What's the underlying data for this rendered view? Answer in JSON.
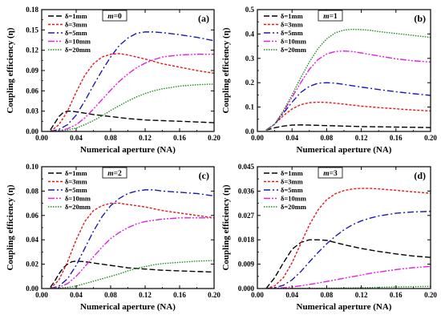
{
  "x_label": "Numerical aperture (NA)",
  "y_label": "Coupling efficiency (η)",
  "styles": [
    {
      "color": "#000000",
      "dash": "7,3"
    },
    {
      "color": "#e8141a",
      "dash": "3,2"
    },
    {
      "color": "#1a1ab4",
      "dash": "8,3,2,3"
    },
    {
      "color": "#e020e0",
      "dash": "8,2,2,2,2,2"
    },
    {
      "color": "#1a8c1a",
      "dash": "1.5,1.5"
    }
  ],
  "chart_data": [
    {
      "type": "line",
      "panel": "(a)",
      "annotation": "m=0",
      "annotation_parts": {
        "var": "m",
        "rest": "=0"
      },
      "xlim": [
        0,
        0.2
      ],
      "ylim": [
        0,
        0.18
      ],
      "xticks": [
        "0.00",
        "0.04",
        "0.08",
        "0.12",
        "0.16",
        "0.20"
      ],
      "yticks": [
        "0.00",
        "0.03",
        "0.06",
        "0.09",
        "0.12",
        "0.15",
        "0.18"
      ],
      "series": [
        {
          "name": "δ=1mm",
          "x": [
            0.01,
            0.015,
            0.02,
            0.025,
            0.03,
            0.035,
            0.04,
            0.05,
            0.06,
            0.08,
            0.1,
            0.12,
            0.14,
            0.16,
            0.18,
            0.2
          ],
          "y": [
            0.002,
            0.012,
            0.022,
            0.028,
            0.03,
            0.03,
            0.029,
            0.027,
            0.025,
            0.022,
            0.019,
            0.017,
            0.016,
            0.015,
            0.014,
            0.013
          ]
        },
        {
          "name": "δ=3mm",
          "x": [
            0.01,
            0.02,
            0.03,
            0.04,
            0.05,
            0.06,
            0.07,
            0.08,
            0.09,
            0.1,
            0.12,
            0.14,
            0.16,
            0.18,
            0.2
          ],
          "y": [
            0,
            0.01,
            0.03,
            0.058,
            0.083,
            0.1,
            0.11,
            0.114,
            0.115,
            0.113,
            0.107,
            0.1,
            0.095,
            0.09,
            0.086
          ]
        },
        {
          "name": "δ=5mm",
          "x": [
            0.01,
            0.02,
            0.03,
            0.04,
            0.05,
            0.06,
            0.07,
            0.08,
            0.09,
            0.1,
            0.11,
            0.12,
            0.13,
            0.14,
            0.16,
            0.18,
            0.2
          ],
          "y": [
            0,
            0.003,
            0.01,
            0.024,
            0.045,
            0.068,
            0.09,
            0.11,
            0.127,
            0.138,
            0.145,
            0.147,
            0.147,
            0.146,
            0.143,
            0.139,
            0.134
          ]
        },
        {
          "name": "δ=10mm",
          "x": [
            0.01,
            0.02,
            0.03,
            0.04,
            0.05,
            0.06,
            0.07,
            0.08,
            0.09,
            0.1,
            0.11,
            0.12,
            0.13,
            0.14,
            0.16,
            0.18,
            0.2
          ],
          "y": [
            0,
            0.001,
            0.004,
            0.01,
            0.02,
            0.033,
            0.047,
            0.061,
            0.074,
            0.085,
            0.094,
            0.101,
            0.106,
            0.11,
            0.113,
            0.114,
            0.114
          ]
        },
        {
          "name": "δ=20mm",
          "x": [
            0.01,
            0.02,
            0.03,
            0.04,
            0.05,
            0.06,
            0.07,
            0.08,
            0.09,
            0.1,
            0.11,
            0.12,
            0.13,
            0.14,
            0.16,
            0.18,
            0.2
          ],
          "y": [
            0,
            0.0005,
            0.002,
            0.005,
            0.01,
            0.016,
            0.023,
            0.031,
            0.038,
            0.045,
            0.051,
            0.056,
            0.06,
            0.063,
            0.067,
            0.069,
            0.07
          ]
        }
      ]
    },
    {
      "type": "line",
      "panel": "(b)",
      "annotation": "m=1",
      "annotation_parts": {
        "var": "m",
        "rest": "=1"
      },
      "xlim": [
        0,
        0.2
      ],
      "ylim": [
        0,
        0.5
      ],
      "xticks": [
        "0.00",
        "0.04",
        "0.08",
        "0.12",
        "0.16",
        "0.20"
      ],
      "yticks": [
        "0.0",
        "0.1",
        "0.2",
        "0.3",
        "0.4",
        "0.5"
      ],
      "series": [
        {
          "name": "δ=1mm",
          "x": [
            0.01,
            0.02,
            0.03,
            0.04,
            0.05,
            0.06,
            0.08,
            0.1,
            0.12,
            0.14,
            0.16,
            0.18,
            0.2
          ],
          "y": [
            0.005,
            0.015,
            0.022,
            0.026,
            0.027,
            0.026,
            0.024,
            0.022,
            0.02,
            0.019,
            0.018,
            0.017,
            0.016
          ]
        },
        {
          "name": "δ=3mm",
          "x": [
            0.01,
            0.02,
            0.03,
            0.04,
            0.05,
            0.06,
            0.07,
            0.08,
            0.09,
            0.1,
            0.12,
            0.14,
            0.16,
            0.18,
            0.2
          ],
          "y": [
            0.005,
            0.03,
            0.065,
            0.092,
            0.11,
            0.118,
            0.12,
            0.119,
            0.116,
            0.112,
            0.104,
            0.098,
            0.093,
            0.088,
            0.084
          ]
        },
        {
          "name": "δ=5mm",
          "x": [
            0.01,
            0.02,
            0.03,
            0.04,
            0.05,
            0.06,
            0.07,
            0.08,
            0.09,
            0.1,
            0.12,
            0.14,
            0.16,
            0.18,
            0.2
          ],
          "y": [
            0.005,
            0.03,
            0.075,
            0.12,
            0.16,
            0.185,
            0.198,
            0.2,
            0.198,
            0.193,
            0.182,
            0.172,
            0.163,
            0.155,
            0.148
          ]
        },
        {
          "name": "δ=10mm",
          "x": [
            0.01,
            0.02,
            0.03,
            0.04,
            0.05,
            0.06,
            0.07,
            0.08,
            0.09,
            0.1,
            0.11,
            0.12,
            0.14,
            0.16,
            0.18,
            0.2
          ],
          "y": [
            0.005,
            0.03,
            0.08,
            0.14,
            0.2,
            0.255,
            0.295,
            0.318,
            0.328,
            0.33,
            0.328,
            0.322,
            0.31,
            0.298,
            0.29,
            0.285
          ]
        },
        {
          "name": "δ=20mm",
          "x": [
            0.01,
            0.02,
            0.03,
            0.04,
            0.05,
            0.06,
            0.07,
            0.08,
            0.09,
            0.1,
            0.11,
            0.12,
            0.13,
            0.14,
            0.16,
            0.18,
            0.2
          ],
          "y": [
            0.005,
            0.03,
            0.085,
            0.15,
            0.22,
            0.285,
            0.34,
            0.38,
            0.405,
            0.416,
            0.419,
            0.418,
            0.415,
            0.41,
            0.402,
            0.394,
            0.386
          ]
        }
      ]
    },
    {
      "type": "line",
      "panel": "(c)",
      "annotation": "m=2",
      "annotation_parts": {
        "var": "m",
        "rest": "=2"
      },
      "xlim": [
        0,
        0.2
      ],
      "ylim": [
        0,
        0.1
      ],
      "xticks": [
        "0.00",
        "0.04",
        "0.08",
        "0.12",
        "0.16",
        "0.20"
      ],
      "yticks": [
        "0.00",
        "0.02",
        "0.04",
        "0.06",
        "0.08",
        "0.10"
      ],
      "series": [
        {
          "name": "δ=1mm",
          "x": [
            0.01,
            0.015,
            0.02,
            0.025,
            0.03,
            0.035,
            0.04,
            0.05,
            0.06,
            0.08,
            0.1,
            0.12,
            0.14,
            0.16,
            0.18,
            0.2
          ],
          "y": [
            0.001,
            0.006,
            0.012,
            0.017,
            0.02,
            0.022,
            0.0225,
            0.022,
            0.021,
            0.019,
            0.017,
            0.016,
            0.015,
            0.0145,
            0.014,
            0.0135
          ]
        },
        {
          "name": "δ=3mm",
          "x": [
            0.01,
            0.02,
            0.03,
            0.04,
            0.05,
            0.06,
            0.07,
            0.08,
            0.09,
            0.1,
            0.12,
            0.14,
            0.16,
            0.18,
            0.2
          ],
          "y": [
            0,
            0.007,
            0.022,
            0.04,
            0.055,
            0.064,
            0.068,
            0.07,
            0.07,
            0.069,
            0.067,
            0.064,
            0.062,
            0.06,
            0.058
          ]
        },
        {
          "name": "δ=5mm",
          "x": [
            0.01,
            0.02,
            0.03,
            0.04,
            0.05,
            0.06,
            0.07,
            0.08,
            0.09,
            0.1,
            0.11,
            0.12,
            0.13,
            0.14,
            0.16,
            0.18,
            0.2
          ],
          "y": [
            0,
            0.002,
            0.008,
            0.019,
            0.033,
            0.047,
            0.059,
            0.068,
            0.074,
            0.078,
            0.08,
            0.081,
            0.081,
            0.08,
            0.079,
            0.078,
            0.076
          ]
        },
        {
          "name": "δ=10mm",
          "x": [
            0.01,
            0.02,
            0.03,
            0.04,
            0.05,
            0.06,
            0.07,
            0.08,
            0.09,
            0.1,
            0.11,
            0.12,
            0.13,
            0.14,
            0.16,
            0.18,
            0.2
          ],
          "y": [
            0,
            0.001,
            0.004,
            0.01,
            0.018,
            0.026,
            0.034,
            0.041,
            0.046,
            0.05,
            0.053,
            0.055,
            0.056,
            0.057,
            0.058,
            0.058,
            0.058
          ]
        },
        {
          "name": "δ=20mm",
          "x": [
            0.01,
            0.02,
            0.03,
            0.04,
            0.05,
            0.06,
            0.07,
            0.08,
            0.09,
            0.1,
            0.11,
            0.12,
            0.13,
            0.14,
            0.16,
            0.18,
            0.2
          ],
          "y": [
            0,
            0.0003,
            0.001,
            0.002,
            0.004,
            0.006,
            0.008,
            0.01,
            0.012,
            0.0145,
            0.0165,
            0.018,
            0.0195,
            0.0205,
            0.0215,
            0.0225,
            0.023
          ]
        }
      ]
    },
    {
      "type": "line",
      "panel": "(d)",
      "annotation": "m=3",
      "annotation_parts": {
        "var": "m",
        "rest": "=3"
      },
      "xlim": [
        0,
        0.2
      ],
      "ylim": [
        0,
        0.045
      ],
      "xticks": [
        "0.00",
        "0.04",
        "0.08",
        "0.12",
        "0.16",
        "0.20"
      ],
      "yticks": [
        "0.000",
        "0.009",
        "0.018",
        "0.027",
        "0.036",
        "0.045"
      ],
      "series": [
        {
          "name": "δ=1mm",
          "x": [
            0.01,
            0.02,
            0.03,
            0.04,
            0.05,
            0.06,
            0.07,
            0.08,
            0.09,
            0.1,
            0.12,
            0.14,
            0.16,
            0.18,
            0.2
          ],
          "y": [
            0,
            0.004,
            0.0095,
            0.0145,
            0.017,
            0.018,
            0.018,
            0.0178,
            0.017,
            0.0162,
            0.0148,
            0.0137,
            0.0128,
            0.012,
            0.0115
          ]
        },
        {
          "name": "δ=3mm",
          "x": [
            0.01,
            0.02,
            0.03,
            0.04,
            0.05,
            0.06,
            0.07,
            0.08,
            0.09,
            0.1,
            0.11,
            0.12,
            0.13,
            0.14,
            0.16,
            0.18,
            0.2
          ],
          "y": [
            0,
            0.001,
            0.004,
            0.0095,
            0.0165,
            0.0235,
            0.029,
            0.0328,
            0.035,
            0.0362,
            0.0368,
            0.037,
            0.037,
            0.0368,
            0.0363,
            0.0357,
            0.0352
          ]
        },
        {
          "name": "δ=5mm",
          "x": [
            0.01,
            0.02,
            0.03,
            0.04,
            0.05,
            0.06,
            0.07,
            0.08,
            0.09,
            0.1,
            0.11,
            0.12,
            0.13,
            0.14,
            0.16,
            0.18,
            0.2
          ],
          "y": [
            0,
            0.0003,
            0.0012,
            0.0032,
            0.0062,
            0.0098,
            0.0133,
            0.0165,
            0.0193,
            0.0217,
            0.0236,
            0.025,
            0.026,
            0.0268,
            0.0278,
            0.0283,
            0.0285
          ]
        },
        {
          "name": "δ=10mm",
          "x": [
            0.01,
            0.02,
            0.03,
            0.04,
            0.05,
            0.06,
            0.07,
            0.08,
            0.09,
            0.1,
            0.11,
            0.12,
            0.13,
            0.14,
            0.16,
            0.18,
            0.2
          ],
          "y": [
            0,
            0.0001,
            0.0003,
            0.0006,
            0.001,
            0.0015,
            0.002,
            0.0026,
            0.0032,
            0.0038,
            0.0044,
            0.005,
            0.0056,
            0.0061,
            0.007,
            0.0077,
            0.0082
          ]
        },
        {
          "name": "δ=20mm",
          "x": [
            0.01,
            0.04,
            0.06,
            0.08,
            0.1,
            0.12,
            0.14,
            0.16,
            0.18,
            0.2
          ],
          "y": [
            0,
            2e-05,
            5e-05,
            0.0001,
            0.0002,
            0.0003,
            0.00045,
            0.0006,
            0.0007,
            0.0008
          ]
        }
      ]
    }
  ]
}
